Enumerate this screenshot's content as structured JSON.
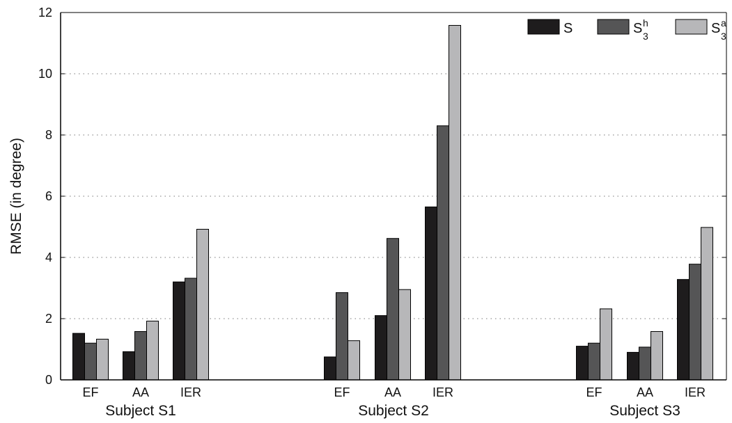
{
  "chart_data": {
    "type": "bar",
    "ylabel": "RMSE (in degree)",
    "ylim": [
      0,
      12
    ],
    "yticks": [
      0,
      2,
      4,
      6,
      8,
      10,
      12
    ],
    "grid": "dotted horizontal",
    "legend_position": "top-right",
    "groups": [
      {
        "label": "Subject S1",
        "categories": [
          "EF",
          "AA",
          "IER"
        ]
      },
      {
        "label": "Subject S2",
        "categories": [
          "EF",
          "AA",
          "IER"
        ]
      },
      {
        "label": "Subject S3",
        "categories": [
          "EF",
          "AA",
          "IER"
        ]
      }
    ],
    "series": [
      {
        "legend_base": "S",
        "legend_sup": "",
        "legend_sub": "",
        "color": "#1e1c1d",
        "values": [
          1.52,
          0.92,
          3.2,
          0.75,
          2.1,
          5.65,
          1.1,
          0.9,
          3.28
        ]
      },
      {
        "legend_base": "S",
        "legend_sup": "h",
        "legend_sub": "3",
        "color": "#555556",
        "values": [
          1.2,
          1.58,
          3.32,
          2.85,
          4.62,
          8.3,
          1.2,
          1.07,
          3.78
        ]
      },
      {
        "legend_base": "S",
        "legend_sup": "a",
        "legend_sub": "3",
        "color": "#b7b7b9",
        "values": [
          1.33,
          1.92,
          4.92,
          1.28,
          2.95,
          11.58,
          2.32,
          1.58,
          4.98
        ]
      }
    ]
  }
}
